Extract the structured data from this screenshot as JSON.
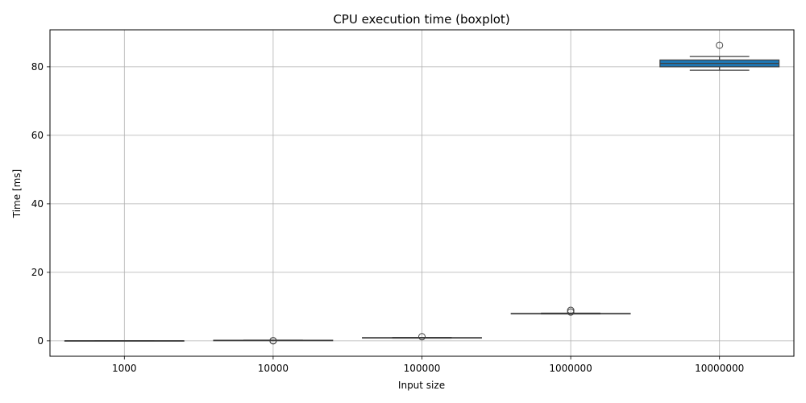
{
  "chart_data": {
    "type": "box",
    "title": "CPU execution time (boxplot)",
    "xlabel": "Input size",
    "ylabel": "Time [ms]",
    "categories": [
      "1000",
      "10000",
      "100000",
      "1000000",
      "10000000"
    ],
    "yticks": [
      "0",
      "20",
      "40",
      "60",
      "80"
    ],
    "ylim": [
      -4.5,
      90.8
    ],
    "grid": true,
    "box_color": "#1f77b4",
    "boxes": [
      {
        "category": "1000",
        "whisker_low": 0.01,
        "q1": 0.02,
        "median": 0.03,
        "q3": 0.04,
        "whisker_high": 0.06,
        "outliers": []
      },
      {
        "category": "10000",
        "whisker_low": 0.1,
        "q1": 0.14,
        "median": 0.16,
        "q3": 0.18,
        "whisker_high": 0.22,
        "outliers": [
          0.0,
          0.05
        ]
      },
      {
        "category": "100000",
        "whisker_low": 0.8,
        "q1": 0.85,
        "median": 0.9,
        "q3": 0.95,
        "whisker_high": 1.0,
        "outliers": [
          1.2
        ]
      },
      {
        "category": "1000000",
        "whisker_low": 7.85,
        "q1": 7.9,
        "median": 7.95,
        "q3": 8.0,
        "whisker_high": 8.1,
        "outliers": [
          8.4,
          8.9
        ]
      },
      {
        "category": "10000000",
        "whisker_low": 79.0,
        "q1": 80.0,
        "median": 81.0,
        "q3": 82.0,
        "whisker_high": 83.0,
        "outliers": [
          86.3
        ]
      }
    ]
  }
}
